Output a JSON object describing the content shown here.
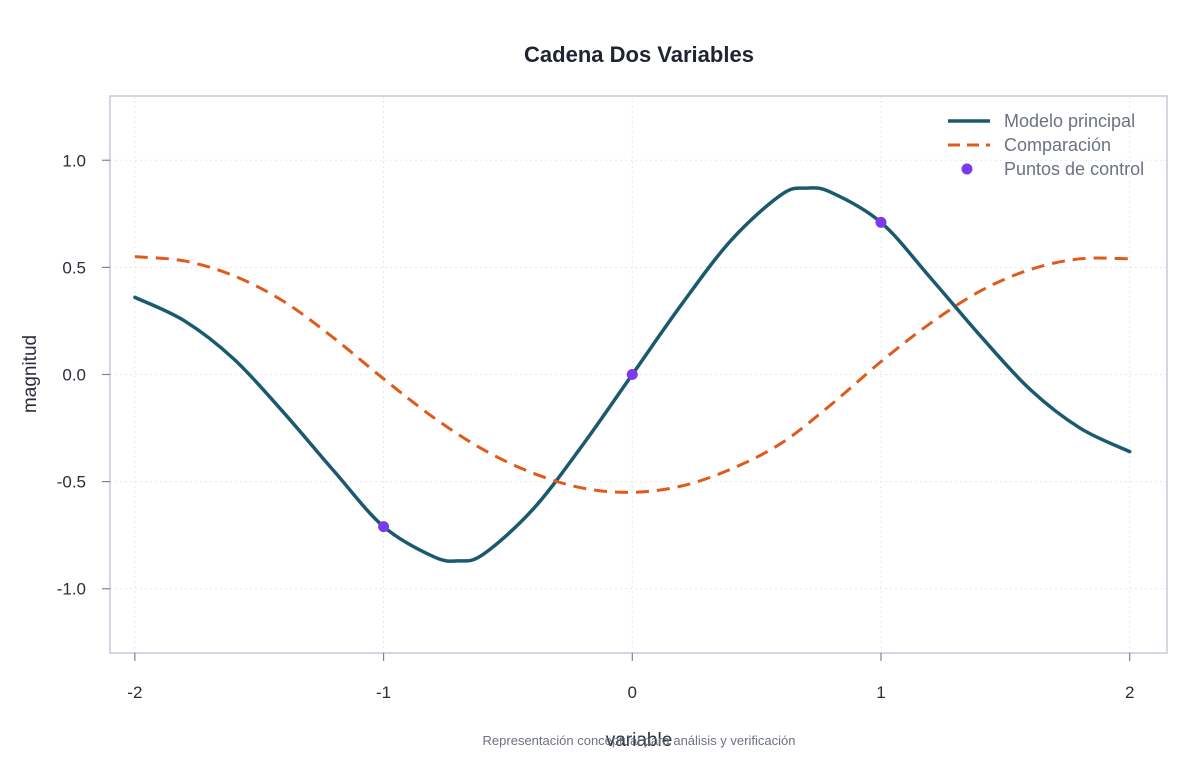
{
  "chart_data": {
    "type": "line",
    "title": "Cadena Dos Variables",
    "xlabel": "variable",
    "ylabel": "magnitud",
    "caption": "Representación conceptual para análisis y verificación",
    "xlim": [
      -2.1,
      2.15
    ],
    "ylim": [
      -1.3,
      1.3
    ],
    "x_ticks": [
      -2,
      -1,
      0,
      1,
      2
    ],
    "x_tick_labels": [
      "-2",
      "-1",
      "0",
      "1",
      "2"
    ],
    "y_ticks": [
      -1.0,
      -0.5,
      0.0,
      0.5,
      1.0
    ],
    "y_tick_labels": [
      "-1.0",
      "-0.5",
      "0.0",
      "0.5",
      "1.0"
    ],
    "grid": true,
    "legend_position": "top-right",
    "series": [
      {
        "name": "Modelo principal",
        "kind": "line",
        "style": "solid",
        "color": "#1b5a6e",
        "x": [
          -2.0,
          -1.8,
          -1.6,
          -1.4,
          -1.2,
          -1.0,
          -0.8,
          -0.7,
          -0.6,
          -0.4,
          -0.2,
          0.0,
          0.2,
          0.4,
          0.6,
          0.7,
          0.8,
          1.0,
          1.2,
          1.4,
          1.6,
          1.8,
          2.0
        ],
        "y": [
          0.36,
          0.25,
          0.07,
          -0.18,
          -0.45,
          -0.71,
          -0.85,
          -0.87,
          -0.84,
          -0.63,
          -0.33,
          0.0,
          0.33,
          0.63,
          0.84,
          0.87,
          0.85,
          0.71,
          0.45,
          0.18,
          -0.07,
          -0.25,
          -0.36
        ]
      },
      {
        "name": "Comparación",
        "kind": "line",
        "style": "dashed",
        "color": "#e05a1a",
        "x": [
          -2.0,
          -1.8,
          -1.6,
          -1.4,
          -1.2,
          -1.0,
          -0.8,
          -0.6,
          -0.4,
          -0.2,
          0.0,
          0.2,
          0.4,
          0.6,
          0.8,
          1.0,
          1.2,
          1.4,
          1.6,
          1.8,
          2.0
        ],
        "y": [
          0.55,
          0.53,
          0.46,
          0.34,
          0.17,
          -0.02,
          -0.2,
          -0.35,
          -0.46,
          -0.53,
          -0.55,
          -0.52,
          -0.44,
          -0.32,
          -0.14,
          0.06,
          0.24,
          0.39,
          0.49,
          0.54,
          0.54
        ]
      },
      {
        "name": "Puntos de control",
        "kind": "scatter",
        "color": "#7c3aed",
        "x": [
          -1,
          0,
          1
        ],
        "y": [
          -0.71,
          0.0,
          0.71
        ]
      }
    ]
  }
}
